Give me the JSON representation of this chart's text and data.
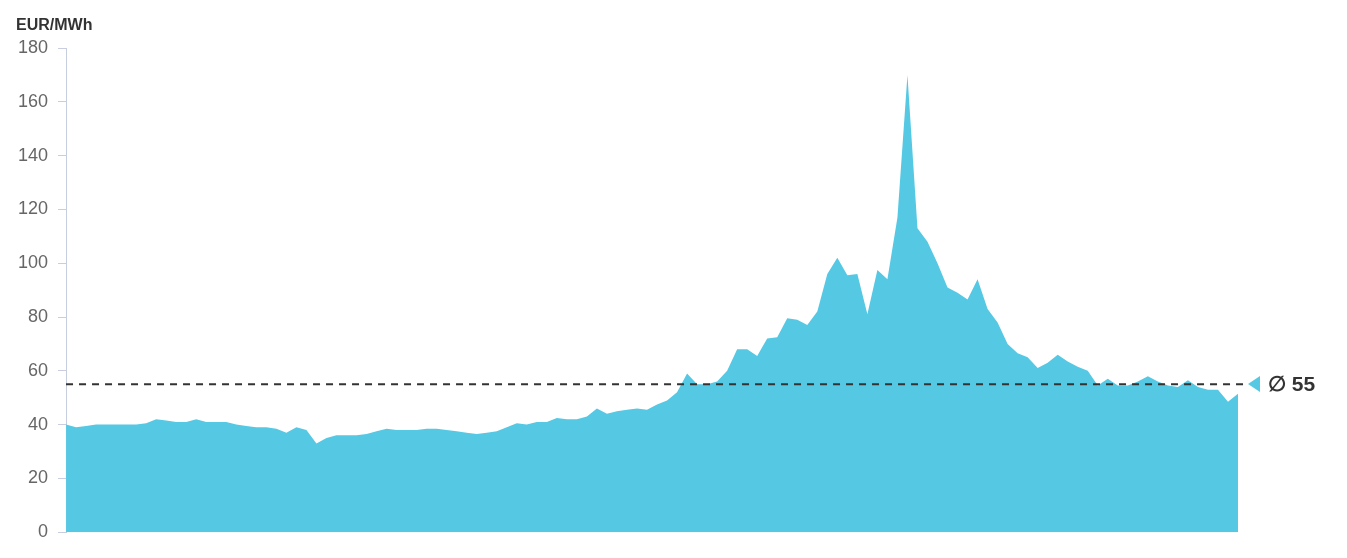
{
  "chart_data": {
    "type": "area",
    "ylabel": "EUR/MWh",
    "categories": [
      null,
      null,
      null,
      null,
      null,
      null,
      null,
      null,
      null,
      null,
      null,
      null,
      null,
      null,
      null,
      null,
      null,
      null,
      null,
      null,
      null,
      null,
      null,
      null,
      null,
      null,
      null,
      null,
      null,
      null,
      null,
      null,
      null,
      null,
      null,
      null,
      null,
      null,
      null,
      null,
      null,
      null,
      null,
      null,
      null,
      null,
      null,
      null,
      null,
      null,
      null,
      null,
      null,
      null,
      null,
      null,
      null,
      null,
      null,
      null,
      null,
      null,
      null,
      null,
      null,
      null,
      null,
      null,
      null,
      null,
      null,
      null,
      null,
      null,
      null,
      null,
      null,
      null,
      null,
      null,
      null,
      null,
      null,
      null,
      null,
      null,
      null,
      null,
      null,
      null,
      null,
      null,
      null,
      null,
      null,
      null,
      null,
      null,
      null,
      null,
      null,
      null,
      null,
      null,
      null,
      null,
      null,
      null,
      null,
      null,
      null,
      null,
      null,
      null,
      null,
      null,
      null,
      null
    ],
    "series": [
      {
        "color": "#55c8e4",
        "values": [
          40,
          39,
          39.5,
          40,
          40,
          40,
          40,
          40,
          40.5,
          42,
          41.5,
          41,
          41,
          42,
          41,
          41,
          41,
          40,
          39.5,
          39,
          39,
          38.5,
          37,
          39,
          38,
          33,
          35,
          36,
          36,
          36,
          36.5,
          37.5,
          38.5,
          38,
          38,
          38,
          38.5,
          38.5,
          38,
          37.5,
          37,
          36.5,
          37,
          37.5,
          39,
          40.5,
          40,
          41,
          41,
          42.5,
          42,
          42,
          43,
          46,
          44,
          45,
          45.5,
          46,
          45.5,
          47.5,
          49,
          52,
          59,
          55,
          55,
          56,
          60,
          68,
          68,
          65.5,
          72,
          72.5,
          79.5,
          79,
          77,
          82,
          96,
          102,
          95.5,
          96,
          81,
          97.5,
          94,
          117,
          170,
          113,
          108,
          100,
          91,
          89,
          86.5,
          94,
          83,
          78,
          70,
          66.5,
          65,
          61,
          63,
          66,
          63.5,
          61.5,
          60,
          54.5,
          57,
          54.5,
          54.5,
          56,
          58,
          56,
          54.5,
          54,
          56.5,
          54,
          53,
          53,
          48.5,
          51.5
        ]
      }
    ],
    "ylim": [
      0,
      180
    ],
    "yticks": [
      0,
      20,
      40,
      60,
      80,
      100,
      120,
      140,
      160,
      180
    ],
    "grid": false,
    "legend": false,
    "ref_lines": [
      {
        "axis": "y",
        "value": 55,
        "label": "∅ 55",
        "color": "#333333",
        "line_style": "dashed"
      }
    ]
  }
}
